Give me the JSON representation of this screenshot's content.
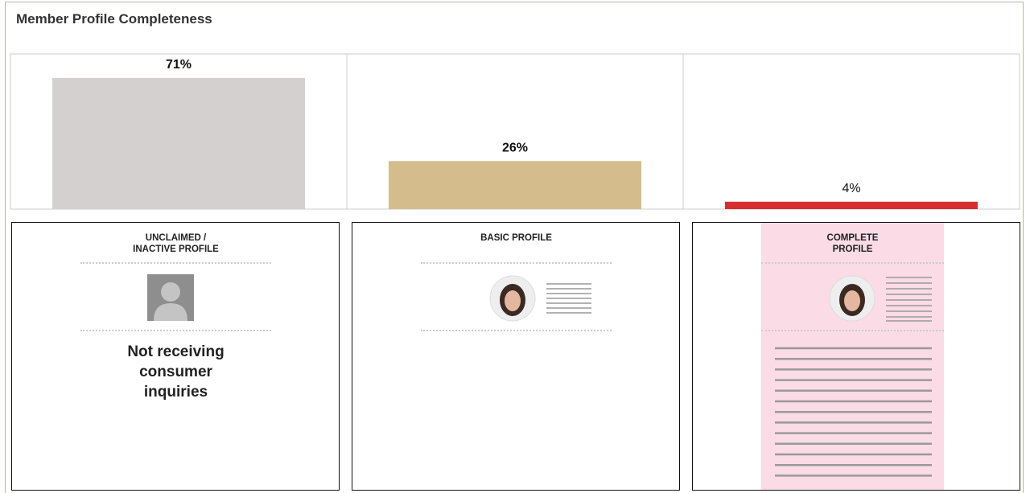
{
  "header": {
    "title": "Member Profile Completeness"
  },
  "chart_data": {
    "type": "bar",
    "categories": [
      null,
      null,
      null
    ],
    "values": [
      71,
      26,
      4
    ],
    "value_labels": [
      "71%",
      "26%",
      "4%"
    ],
    "colors": [
      "#d3d0cf",
      "#d4bc8c",
      "#d62e2e"
    ],
    "ylim": [
      0,
      84
    ]
  },
  "cards": [
    {
      "title": "UNCLAIMED / INACTIVE PROFILE",
      "text": "Not receiving consumer inquiries"
    },
    {
      "title": "BASIC PROFILE"
    },
    {
      "title": "COMPLETE PROFILE"
    }
  ]
}
